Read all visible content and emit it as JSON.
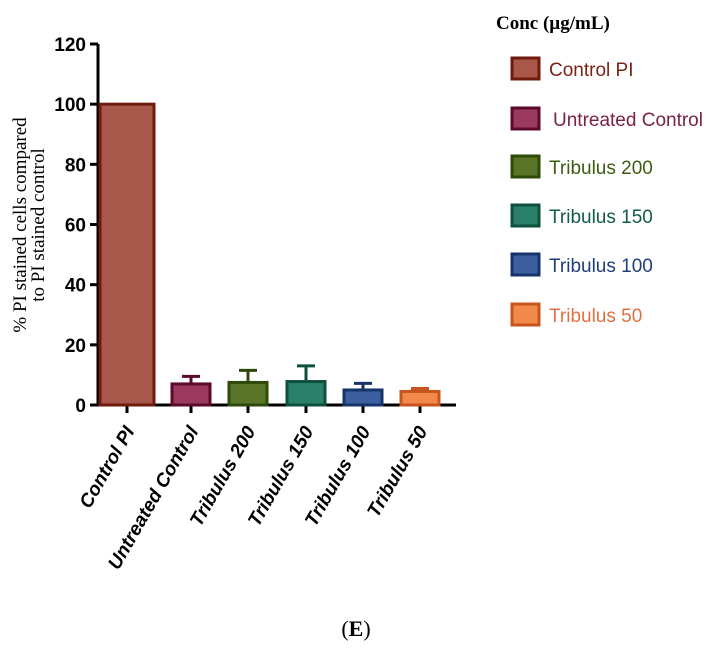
{
  "chart_data": {
    "type": "bar",
    "title": "",
    "xlabel": "",
    "ylabel": "% PI stained cells compared to PI stained control",
    "ylabel_lines": [
      "% PI stained cells compared",
      "to PI stained control"
    ],
    "ylim": [
      0,
      120
    ],
    "yticks": [
      "0",
      "20",
      "40",
      "60",
      "80",
      "100",
      "120"
    ],
    "ytick_values": [
      0,
      20,
      40,
      60,
      80,
      100,
      120
    ],
    "categories": [
      "Control PI",
      "Untreated Control",
      "Tribulus 200",
      "Tribulus 150",
      "Tribulus 100",
      "Tribulus 50"
    ],
    "values": [
      100,
      7,
      7.5,
      7.8,
      5,
      4.5
    ],
    "errors": [
      0,
      2.5,
      4,
      5.2,
      2.2,
      1
    ],
    "legend_title": "Conc (µg/mL)",
    "legend": [
      "Control PI",
      "Untreated Control",
      "Tribulus 200",
      "Tribulus 150",
      "Tribulus 100",
      "Tribulus 50"
    ],
    "legend_position": "right",
    "colors": {
      "fill": [
        "#A9574A",
        "#9B3A5E",
        "#5A7527",
        "#2A8069",
        "#3D5FA0",
        "#F1894B"
      ],
      "stroke": [
        "#6E1B0E",
        "#5C0A2C",
        "#2E4A0A",
        "#0F4F3E",
        "#16346A",
        "#C8551F"
      ],
      "legend_text": [
        "#7A2418",
        "#7A1F45",
        "#3C5C12",
        "#135A48",
        "#1E3F7A",
        "#E07040"
      ]
    }
  },
  "panel_label": {
    "open": "(",
    "letter": "E",
    "close": ")"
  }
}
